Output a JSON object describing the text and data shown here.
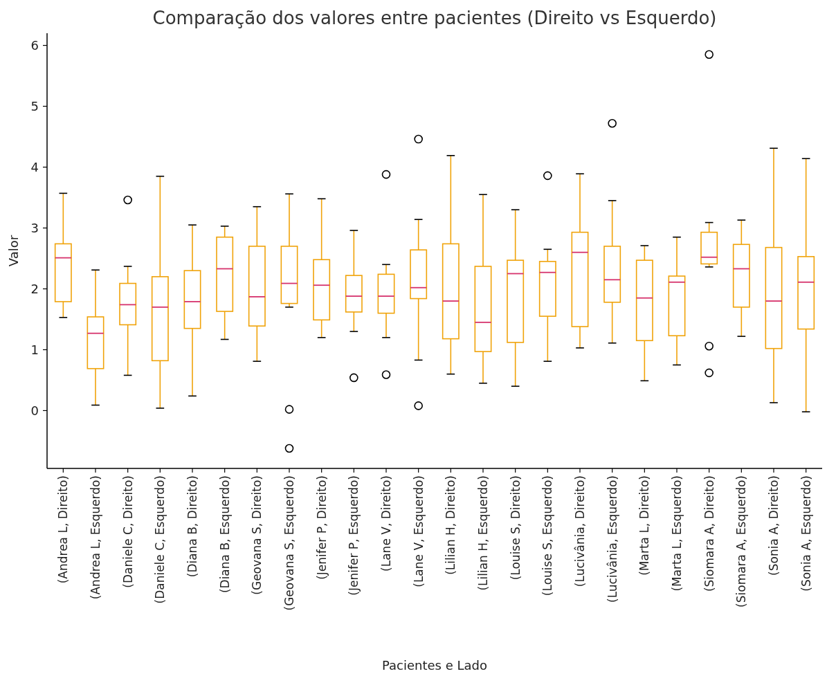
{
  "chart_data": {
    "type": "box",
    "title": "Comparação dos valores entre pacientes (Direito vs Esquerdo)",
    "xlabel": "Pacientes e Lado",
    "ylabel": "Valor",
    "categories": [
      "(Andrea L, Direito)",
      "(Andrea L, Esquerdo)",
      "(Daniele C, Direito)",
      "(Daniele C, Esquerdo)",
      "(Diana B, Direito)",
      "(Diana B, Esquerdo)",
      "(Geovana S, Direito)",
      "(Geovana S, Esquerdo)",
      "(Jenifer P, Direito)",
      "(Jenifer P, Esquerdo)",
      "(Lane V, Direito)",
      "(Lane V, Esquerdo)",
      "(Lilian H, Direito)",
      "(Lilian H, Esquerdo)",
      "(Louise S, Direito)",
      "(Louise S, Esquerdo)",
      "(Lucivânia, Direito)",
      "(Lucivânia, Esquerdo)",
      "(Marta L, Direito)",
      "(Marta L, Esquerdo)",
      "(Siomara A, Direito)",
      "(Siomara A, Esquerdo)",
      "(Sonia A, Direito)",
      "(Sonia A, Esquerdo)"
    ],
    "color": "#f0a30a",
    "ylim": [
      -0.95,
      6.2
    ],
    "yticks": [
      0,
      1,
      2,
      3,
      4,
      5,
      6
    ],
    "grid": false,
    "boxes": [
      {
        "low": 1.53,
        "q1": 1.79,
        "median": 2.51,
        "q3": 2.74,
        "high": 3.57
      },
      {
        "low": 0.09,
        "q1": 0.69,
        "median": 1.27,
        "q3": 1.54,
        "high": 2.31
      },
      {
        "low": 0.58,
        "q1": 1.41,
        "median": 1.74,
        "q3": 2.09,
        "high": 2.37,
        "outliers": [
          3.46
        ]
      },
      {
        "low": 0.04,
        "q1": 0.82,
        "median": 1.7,
        "q3": 2.2,
        "high": 3.85
      },
      {
        "low": 0.24,
        "q1": 1.35,
        "median": 1.79,
        "q3": 2.3,
        "high": 3.05
      },
      {
        "low": 1.17,
        "q1": 1.63,
        "median": 2.33,
        "q3": 2.85,
        "high": 3.03
      },
      {
        "low": 0.81,
        "q1": 1.39,
        "median": 1.87,
        "q3": 2.7,
        "high": 3.35
      },
      {
        "low": 1.7,
        "q1": 1.76,
        "median": 2.09,
        "q3": 2.7,
        "high": 3.56,
        "outliers": [
          0.02,
          -0.62
        ]
      },
      {
        "low": 1.2,
        "q1": 1.49,
        "median": 2.06,
        "q3": 2.48,
        "high": 3.48
      },
      {
        "low": 1.3,
        "q1": 1.62,
        "median": 1.88,
        "q3": 2.22,
        "high": 2.96,
        "outliers": [
          0.54
        ]
      },
      {
        "low": 1.2,
        "q1": 1.6,
        "median": 1.88,
        "q3": 2.24,
        "high": 2.4,
        "outliers": [
          3.88,
          0.59
        ]
      },
      {
        "low": 0.83,
        "q1": 1.84,
        "median": 2.02,
        "q3": 2.64,
        "high": 3.14,
        "outliers": [
          4.46,
          0.08
        ]
      },
      {
        "low": 0.6,
        "q1": 1.18,
        "median": 1.8,
        "q3": 2.74,
        "high": 4.19
      },
      {
        "low": 0.45,
        "q1": 0.97,
        "median": 1.45,
        "q3": 2.37,
        "high": 3.55
      },
      {
        "low": 0.4,
        "q1": 1.12,
        "median": 2.25,
        "q3": 2.47,
        "high": 3.3
      },
      {
        "low": 0.81,
        "q1": 1.55,
        "median": 2.27,
        "q3": 2.45,
        "high": 2.65,
        "outliers": [
          3.86
        ]
      },
      {
        "low": 1.03,
        "q1": 1.38,
        "median": 2.6,
        "q3": 2.93,
        "high": 3.89
      },
      {
        "low": 1.11,
        "q1": 1.78,
        "median": 2.15,
        "q3": 2.7,
        "high": 3.45,
        "outliers": [
          4.72
        ]
      },
      {
        "low": 0.49,
        "q1": 1.15,
        "median": 1.85,
        "q3": 2.47,
        "high": 2.71
      },
      {
        "low": 0.75,
        "q1": 1.23,
        "median": 2.11,
        "q3": 2.21,
        "high": 2.85
      },
      {
        "low": 2.36,
        "q1": 2.41,
        "median": 2.52,
        "q3": 2.93,
        "high": 3.09,
        "outliers": [
          5.85,
          1.06,
          0.62
        ]
      },
      {
        "low": 1.22,
        "q1": 1.7,
        "median": 2.33,
        "q3": 2.73,
        "high": 3.13
      },
      {
        "low": 0.13,
        "q1": 1.02,
        "median": 1.8,
        "q3": 2.68,
        "high": 4.31
      },
      {
        "low": -0.02,
        "q1": 1.34,
        "median": 2.11,
        "q3": 2.53,
        "high": 4.14
      }
    ]
  }
}
